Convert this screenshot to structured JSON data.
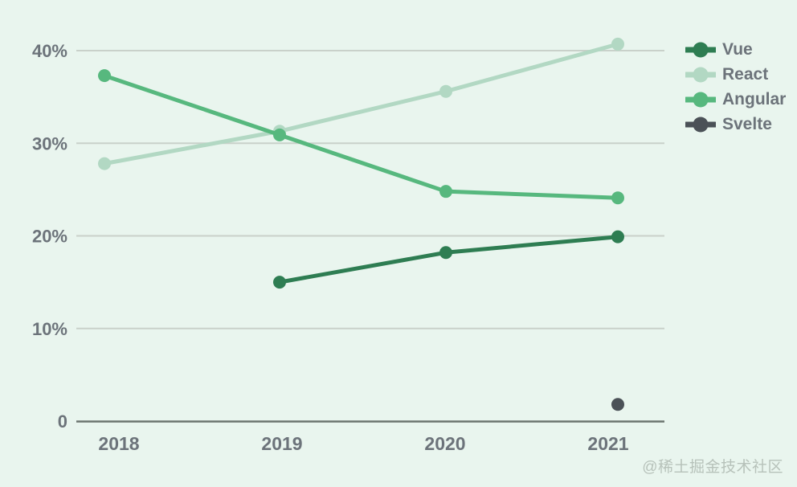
{
  "watermark": "@稀土掘金技术社区",
  "colors": {
    "background": "#e9f5ee",
    "gridline": "#c9d1ca",
    "axis_line": "#6b756f",
    "tick_text": "#6c737a",
    "legend_text": "#6c737a",
    "watermark_text": "#b7c2ba"
  },
  "chart_data": {
    "type": "line",
    "title": "",
    "xlabel": "",
    "ylabel": "",
    "x": [
      2018,
      2019,
      2020,
      2021
    ],
    "x_tick_labels": [
      "2018",
      "2019",
      "2020",
      "2021"
    ],
    "y_ticks": [
      {
        "value": 40,
        "label": "40%"
      },
      {
        "value": 30,
        "label": "30%"
      },
      {
        "value": 20,
        "label": "20%"
      },
      {
        "value": 10,
        "label": "10%"
      },
      {
        "value": 0,
        "label": "0"
      }
    ],
    "ylim": [
      0,
      43
    ],
    "grid": true,
    "legend_position": "right",
    "series": [
      {
        "name": "Vue",
        "color": "#2e7d52",
        "values": [
          null,
          15.0,
          18.2,
          19.9
        ]
      },
      {
        "name": "React",
        "color": "#b2d8c3",
        "values": [
          27.8,
          31.3,
          35.6,
          40.7
        ]
      },
      {
        "name": "Angular",
        "color": "#57b87e",
        "values": [
          37.3,
          30.9,
          24.8,
          24.1
        ]
      },
      {
        "name": "Svelte",
        "color": "#4b5157",
        "values": [
          null,
          null,
          null,
          1.8
        ]
      }
    ],
    "draw_order": [
      "React",
      "Angular",
      "Vue",
      "Svelte"
    ]
  }
}
